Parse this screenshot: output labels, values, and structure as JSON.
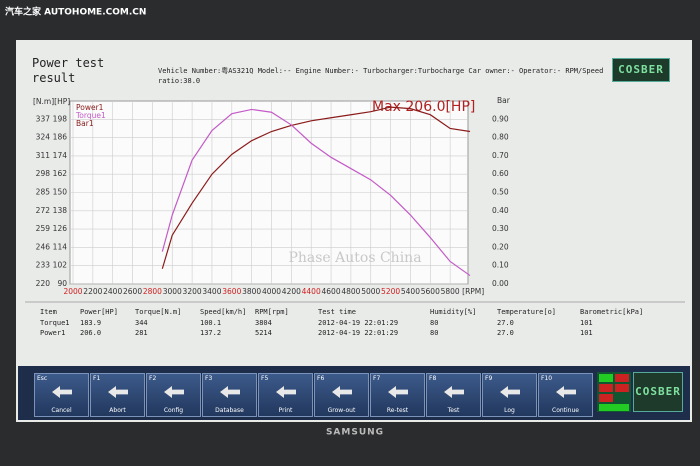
{
  "overlay": {
    "site": "汽车之家 AUTOHOME.COM.CN"
  },
  "header": {
    "title": "Power test result",
    "info": "Vehicle Number:粤AS321Q Model:-- Engine Number:- Turbocharger:Turbocharge Car owner:- Operator:- RPM/Speed ratio:38.0",
    "logo": "COSBER"
  },
  "chart_data": {
    "type": "line",
    "annotation": "Max 206.0[HP]",
    "watermark": "Phase Autos China",
    "ylabel": "[N.m][HP]",
    "y2label": "Bar",
    "xlabel": "[RPM]",
    "x": [
      2900,
      3000,
      3200,
      3400,
      3600,
      3800,
      4000,
      4200,
      4400,
      4600,
      4800,
      5000,
      5200,
      5400,
      5600,
      5800,
      6000
    ],
    "series": [
      {
        "name": "Power1",
        "color": "#8b1a1a",
        "values": [
          100,
          122,
          143,
          162,
          175,
          184,
          190,
          194,
          197,
          199,
          201,
          203,
          206,
          205,
          201,
          192,
          190
        ]
      },
      {
        "name": "Torque1",
        "color": "#c45ac8",
        "axis": "torque",
        "values": [
          243,
          269,
          308,
          329,
          341,
          344,
          342,
          333,
          320,
          310,
          302,
          294,
          283,
          269,
          253,
          236,
          226
        ]
      },
      {
        "name": "Bar1",
        "color": "#8b1a1a",
        "axis": "y2",
        "values": [
          null,
          null,
          null,
          null,
          null,
          null,
          null,
          null,
          null,
          null,
          null,
          null,
          null,
          null,
          null,
          null,
          null
        ]
      }
    ],
    "xlim": [
      2000,
      6000
    ],
    "xticks": [
      2000,
      2200,
      2400,
      2600,
      2800,
      3000,
      3200,
      3400,
      3600,
      3800,
      4000,
      4200,
      4400,
      4600,
      4800,
      5000,
      5200,
      5400,
      5600,
      5800
    ],
    "xtick_colors": [
      "#d02020",
      "#333",
      "#333",
      "#333",
      "#d02020",
      "#333",
      "#333",
      "#333",
      "#d02020",
      "#333",
      "#333",
      "#333",
      "#d02020",
      "#333",
      "#333",
      "#333",
      "#d02020",
      "#333",
      "#333",
      "#333"
    ],
    "ylim": [
      90,
      210
    ],
    "yticks": [
      90,
      102,
      114,
      126,
      138,
      150,
      162,
      174,
      186,
      198
    ],
    "torque_lim": [
      220,
      350
    ],
    "torque_ticks": [
      220,
      233,
      246,
      259,
      272,
      285,
      298,
      311,
      324,
      337
    ],
    "y2lim": [
      0,
      1.0
    ],
    "y2ticks": [
      {
        "value": 0,
        "label": "0.00"
      },
      {
        "value": 0.1,
        "label": "0.10"
      },
      {
        "value": 0.2,
        "label": "0.20"
      },
      {
        "value": 0.3,
        "label": "0.30"
      },
      {
        "value": 0.4,
        "label": "0.40"
      },
      {
        "value": 0.5,
        "label": "0.50"
      },
      {
        "value": 0.6,
        "label": "0.60"
      },
      {
        "value": 0.7,
        "label": "0.70"
      },
      {
        "value": 0.8,
        "label": "0.80"
      },
      {
        "value": 0.9,
        "label": "0.90"
      }
    ],
    "grid": true,
    "legend": "upper left"
  },
  "table": {
    "columns": [
      "Item",
      "Power[HP]",
      "Torque[N.m]",
      "Speed[km/h]",
      "RPM[rpm]",
      "Test time",
      "Humidity[%]",
      "Temperature[o]",
      "Barometric[kPa]"
    ],
    "rows": [
      [
        "Torque1",
        "183.9",
        "344",
        "100.1",
        "3804",
        "2012-04-19 22:01:29",
        "80",
        "27.0",
        "101"
      ],
      [
        "Power1",
        "206.0",
        "281",
        "137.2",
        "5214",
        "2012-04-19 22:01:29",
        "80",
        "27.0",
        "101"
      ]
    ]
  },
  "toolbar": [
    {
      "key": "Esc",
      "label": "Cancel"
    },
    {
      "key": "F1",
      "label": "Abort"
    },
    {
      "key": "F2",
      "label": "Config"
    },
    {
      "key": "F3",
      "label": "Database"
    },
    {
      "key": "F5",
      "label": "Print"
    },
    {
      "key": "F6",
      "label": "Grow-out"
    },
    {
      "key": "F7",
      "label": "Re-test"
    },
    {
      "key": "F8",
      "label": "Test"
    },
    {
      "key": "F9",
      "label": "Log"
    },
    {
      "key": "F10",
      "label": "Continue"
    }
  ],
  "footer": {
    "logo": "COSBER",
    "brand": "SAMSUNG"
  }
}
